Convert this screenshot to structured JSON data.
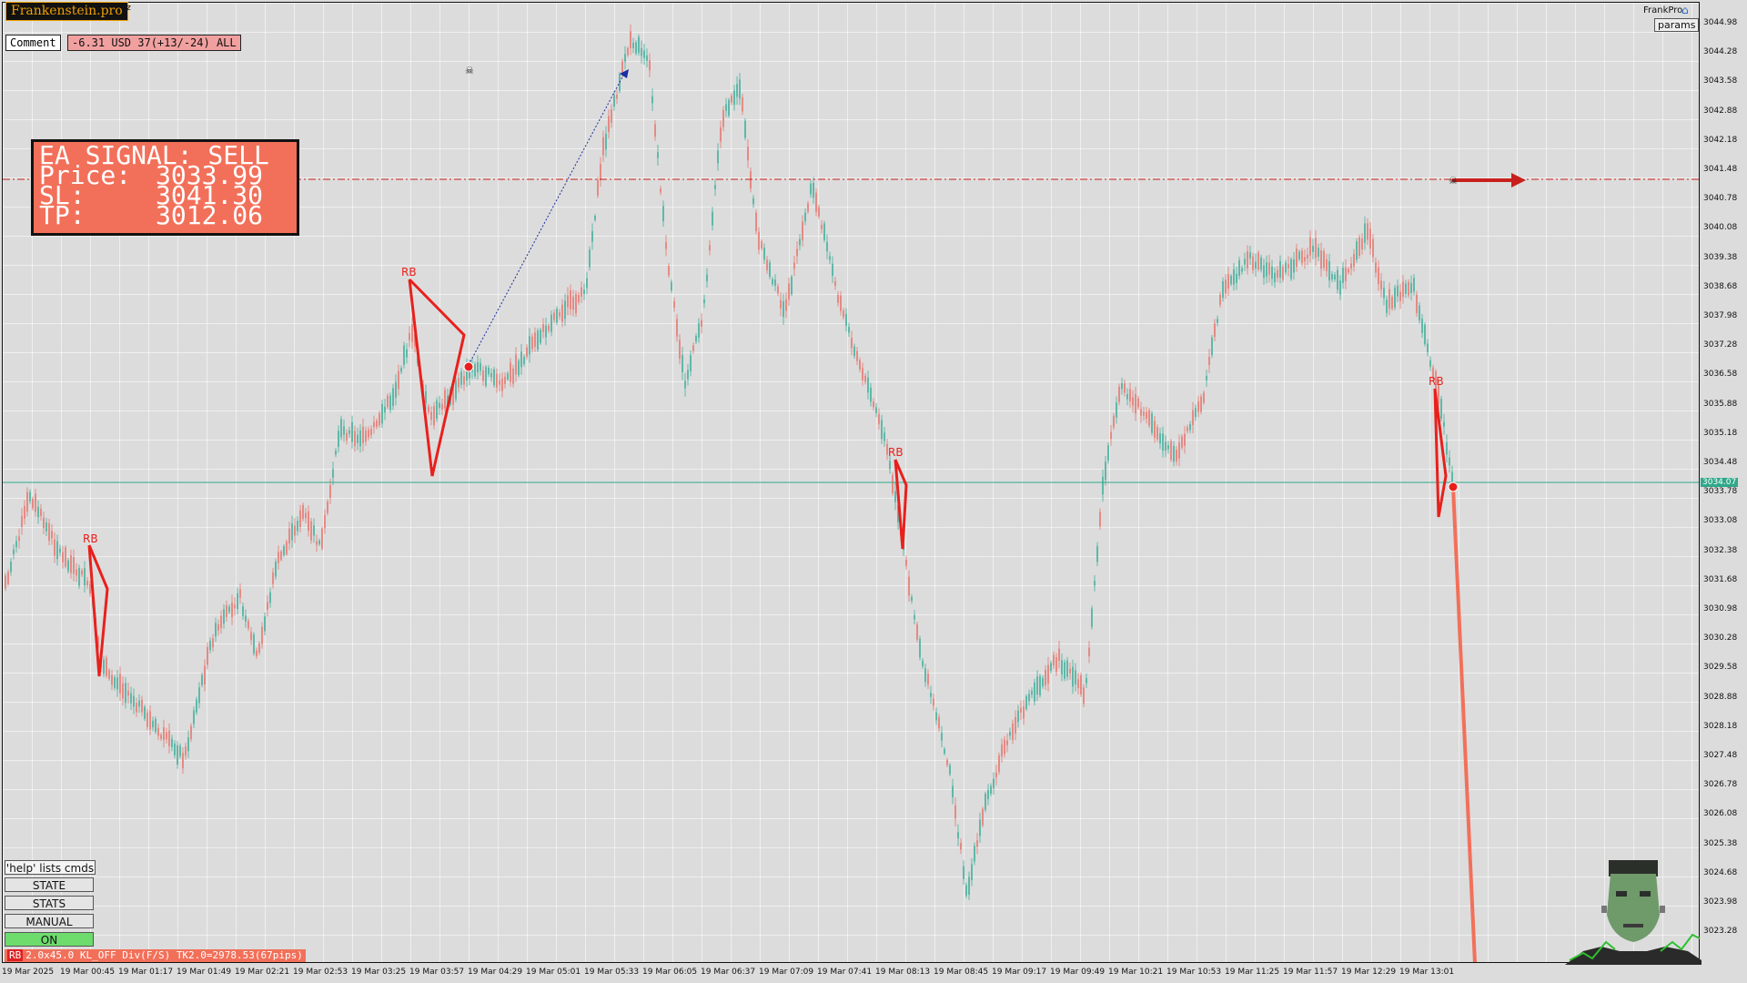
{
  "header": {
    "brand": "Frankenstein.pro",
    "symbol_label": "Oz",
    "top_right_label": "FrankPro",
    "params_button": "params"
  },
  "comment": {
    "button_label": "Comment",
    "value": "-6.31 USD 37(+13/-24) ALL"
  },
  "signal": {
    "title": "EA SIGNAL: SELL",
    "price_label": "Price:",
    "price_value": "3033.99",
    "sl_label": "SL:",
    "sl_value": "3041.30",
    "tp_label": "TP:",
    "tp_value": "3012.06"
  },
  "price_axis": {
    "labels": [
      "3044.98",
      "3044.28",
      "3043.58",
      "3042.88",
      "3042.18",
      "3041.48",
      "3040.78",
      "3040.08",
      "3039.38",
      "3038.68",
      "3037.98",
      "3037.28",
      "3036.58",
      "3035.88",
      "3035.18",
      "3034.48",
      "3033.78",
      "3033.08",
      "3032.38",
      "3031.68",
      "3030.98",
      "3030.28",
      "3029.58",
      "3028.88",
      "3028.18",
      "3027.48",
      "3026.78",
      "3026.08",
      "3025.38",
      "3024.68",
      "3023.98",
      "3023.28"
    ],
    "current_price": "3034.07"
  },
  "time_axis": {
    "labels": [
      "19 Mar 2025",
      "19 Mar 00:45",
      "19 Mar 01:17",
      "19 Mar 01:49",
      "19 Mar 02:21",
      "19 Mar 02:53",
      "19 Mar 03:25",
      "19 Mar 03:57",
      "19 Mar 04:29",
      "19 Mar 05:01",
      "19 Mar 05:33",
      "19 Mar 06:05",
      "19 Mar 06:37",
      "19 Mar 07:09",
      "19 Mar 07:41",
      "19 Mar 08:13",
      "19 Mar 08:45",
      "19 Mar 09:17",
      "19 Mar 09:49",
      "19 Mar 10:21",
      "19 Mar 10:53",
      "19 Mar 11:25",
      "19 Mar 11:57",
      "19 Mar 12:29",
      "19 Mar 13:01"
    ]
  },
  "pattern_labels": [
    "RB",
    "RB",
    "RB",
    "RB"
  ],
  "controls": {
    "help": "'help' lists cmds",
    "state": "STATE",
    "stats": "STATS",
    "manual": "MANUAL",
    "on": "ON"
  },
  "status_bar": {
    "tag": "RB",
    "text": "2.0x45.0 KL_OFF Div(F/S) TK2.0=2978.53(67pips)"
  },
  "colors": {
    "bull_candle": "#5fb8a8",
    "bear_candle": "#e58a84",
    "signal_box": "#f2705a",
    "pattern_line": "#e8201c",
    "sl_line": "#c8201c",
    "current_price_line": "#2fa88a"
  }
}
